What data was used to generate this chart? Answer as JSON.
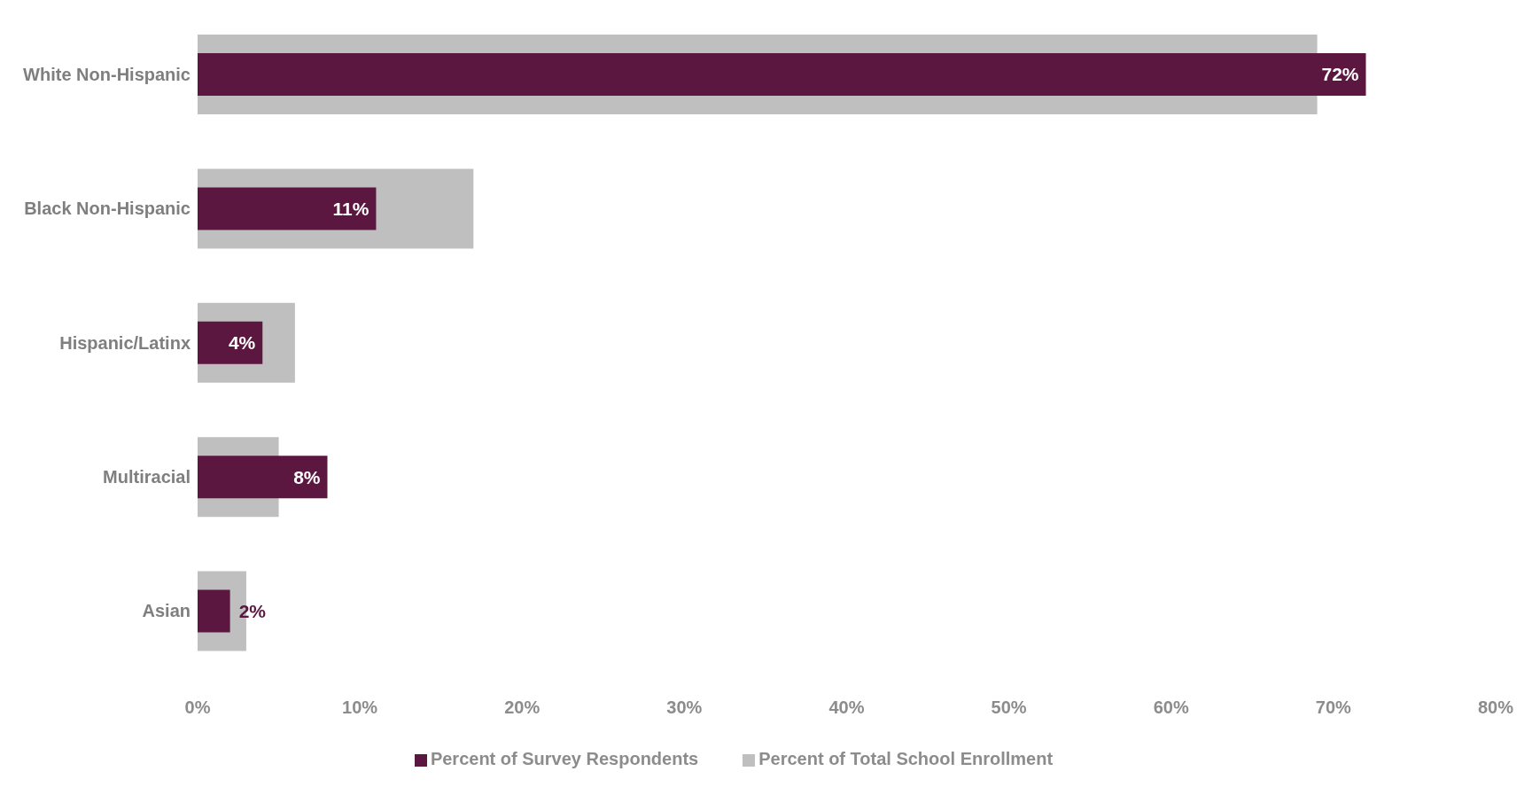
{
  "chart_data": {
    "type": "bar",
    "orientation": "horizontal",
    "categories": [
      "White Non-Hispanic",
      "Black Non-Hispanic",
      "Hispanic/Latinx",
      "Multiracial",
      "Asian"
    ],
    "series": [
      {
        "name": "Percent of Total School Enrollment",
        "color": "#bfbfbf",
        "values": [
          69,
          17,
          6,
          5,
          3
        ]
      },
      {
        "name": "Percent of Survey Respondents",
        "color": "#5c1740",
        "values": [
          72,
          11,
          4,
          8,
          2
        ],
        "value_labels": [
          "72%",
          "11%",
          "4%",
          "8%",
          "2%"
        ]
      }
    ],
    "xlim": [
      0,
      80
    ],
    "xticks": [
      {
        "value": 0,
        "label": "0%"
      },
      {
        "value": 10,
        "label": "10%"
      },
      {
        "value": 20,
        "label": "20%"
      },
      {
        "value": 30,
        "label": "30%"
      },
      {
        "value": 40,
        "label": "40%"
      },
      {
        "value": 50,
        "label": "50%"
      },
      {
        "value": 60,
        "label": "60%"
      },
      {
        "value": 70,
        "label": "70%"
      },
      {
        "value": 80,
        "label": "80%"
      }
    ],
    "grid": false,
    "legend": "bottom"
  }
}
